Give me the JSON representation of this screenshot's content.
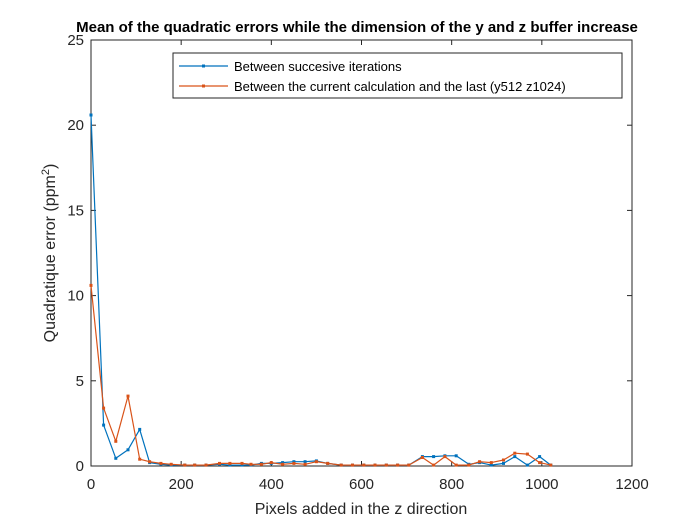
{
  "chart_data": {
    "type": "line",
    "title": "Mean of the quadratic errors while the dimension of the y and z buffer increase",
    "xlabel": "Pixels added in the z direction",
    "ylabel_main": "Quadratique error (ppm",
    "ylabel_sup": "2",
    "ylabel_close": ")",
    "xlim": [
      0,
      1200
    ],
    "ylim": [
      0,
      25
    ],
    "xticks": [
      0,
      200,
      400,
      600,
      800,
      1000,
      1200
    ],
    "yticks": [
      0,
      5,
      10,
      15,
      20,
      25
    ],
    "grid": false,
    "legend_position": "top-right",
    "series": [
      {
        "name": "Between succesive iterations",
        "color": "#0072BD",
        "x": [
          0,
          28,
          55,
          82,
          108,
          130,
          155,
          178,
          208,
          230,
          255,
          285,
          308,
          335,
          355,
          378,
          400,
          425,
          450,
          475,
          500,
          525,
          555,
          580,
          605,
          630,
          655,
          680,
          705,
          735,
          760,
          785,
          810,
          838,
          862,
          888,
          915,
          940,
          968,
          995,
          1020
        ],
        "y": [
          20.6,
          2.4,
          0.45,
          0.95,
          2.15,
          0.2,
          0.1,
          0.05,
          0.05,
          0.05,
          0.05,
          0.1,
          0.05,
          0.05,
          0.05,
          0.15,
          0.15,
          0.2,
          0.25,
          0.25,
          0.3,
          0.15,
          0.05,
          0.05,
          0.05,
          0.05,
          0.05,
          0.05,
          0.05,
          0.55,
          0.55,
          0.6,
          0.6,
          0.1,
          0.2,
          0.05,
          0.15,
          0.55,
          0.05,
          0.55,
          0.05
        ]
      },
      {
        "name": "Between the current calculation and the last (y512 z1024)",
        "color": "#D95319",
        "x": [
          0,
          28,
          55,
          82,
          108,
          130,
          155,
          178,
          208,
          230,
          255,
          285,
          308,
          335,
          355,
          378,
          400,
          425,
          450,
          475,
          500,
          525,
          555,
          580,
          605,
          630,
          655,
          680,
          705,
          735,
          760,
          785,
          810,
          838,
          862,
          888,
          915,
          940,
          968,
          995,
          1020
        ],
        "y": [
          10.6,
          3.4,
          1.45,
          4.1,
          0.4,
          0.25,
          0.15,
          0.1,
          0.05,
          0.05,
          0.05,
          0.15,
          0.15,
          0.15,
          0.1,
          0.1,
          0.2,
          0.1,
          0.15,
          0.1,
          0.25,
          0.15,
          0.05,
          0.05,
          0.05,
          0.05,
          0.05,
          0.05,
          0.05,
          0.5,
          0.05,
          0.55,
          0.05,
          0.05,
          0.25,
          0.2,
          0.35,
          0.75,
          0.7,
          0.2,
          0.05
        ]
      }
    ]
  }
}
